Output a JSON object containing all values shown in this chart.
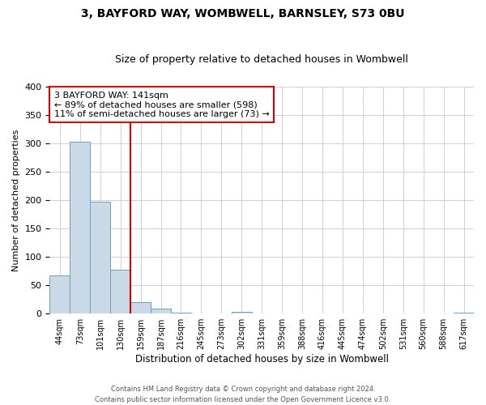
{
  "title": "3, BAYFORD WAY, WOMBWELL, BARNSLEY, S73 0BU",
  "subtitle": "Size of property relative to detached houses in Wombwell",
  "xlabel": "Distribution of detached houses by size in Wombwell",
  "ylabel": "Number of detached properties",
  "bin_labels": [
    "44sqm",
    "73sqm",
    "101sqm",
    "130sqm",
    "159sqm",
    "187sqm",
    "216sqm",
    "245sqm",
    "273sqm",
    "302sqm",
    "331sqm",
    "359sqm",
    "388sqm",
    "416sqm",
    "445sqm",
    "474sqm",
    "502sqm",
    "531sqm",
    "560sqm",
    "588sqm",
    "617sqm"
  ],
  "bar_heights": [
    67,
    303,
    197,
    77,
    20,
    9,
    2,
    0,
    0,
    3,
    0,
    0,
    0,
    0,
    0,
    0,
    0,
    0,
    0,
    0,
    2
  ],
  "bar_color": "#c9d9e8",
  "bar_edge_color": "#6a9fc0",
  "vline_x_idx": 3,
  "vline_color": "#cc0000",
  "annotation_line1": "3 BAYFORD WAY: 141sqm",
  "annotation_line2": "← 89% of detached houses are smaller (598)",
  "annotation_line3": "11% of semi-detached houses are larger (73) →",
  "ylim": [
    0,
    400
  ],
  "yticks": [
    0,
    50,
    100,
    150,
    200,
    250,
    300,
    350,
    400
  ],
  "footer_text": "Contains HM Land Registry data © Crown copyright and database right 2024.\nContains public sector information licensed under the Open Government Licence v3.0.",
  "background_color": "#ffffff",
  "grid_color": "#d0d0d0"
}
